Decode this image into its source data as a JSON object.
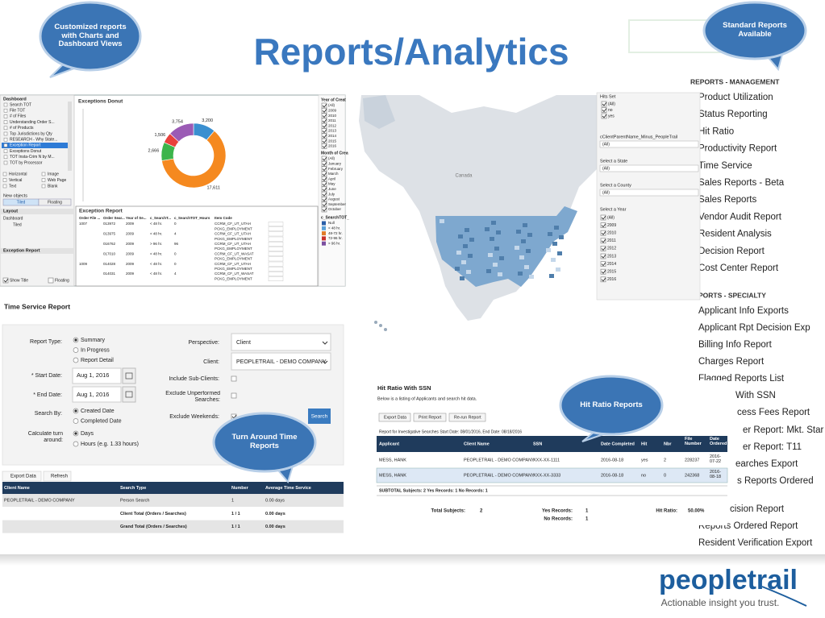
{
  "title": "Reports/Analytics",
  "callouts": [
    "Customized reports with Charts and Dashboard Views",
    "Standard Reports Available",
    "Turn Around Time Reports",
    "Hit Ratio Reports"
  ],
  "dashboard": {
    "sidebar_title": "Dashboard",
    "sidebar_items": [
      "Search TOT",
      "File TOT",
      "# of Files",
      "Understanding Order S...",
      "# of Products",
      "Top Jurisdictions by Qty",
      "RESEARCH - Why State...",
      "Exception Report",
      "Exceptions Donut",
      "TOT Insta-Crim N by M...",
      "TOT by Processor"
    ],
    "objects": [
      "Horizontal",
      "Image",
      "Vertical",
      "Web Page",
      "Text",
      "Blank"
    ],
    "new_objects": "New objects",
    "tiled": "Tiled",
    "floating": "Floating",
    "layout": "Layout",
    "layout_items": [
      "Dashboard",
      "Tiled"
    ],
    "selected": "Exception Report",
    "show_title": "Show Title",
    "donut": {
      "title": "Exceptions Donut",
      "values": [
        3200,
        17611,
        2666,
        1506,
        3754
      ],
      "value_labels": [
        "3,200",
        "17,611",
        "2,666",
        "1,506",
        "3,754"
      ],
      "colors": [
        "#3a8fd0",
        "#f5891f",
        "#3cb44b",
        "#e8413c",
        "#9b5bb5"
      ]
    },
    "year_filter": {
      "title": "Year of Creat",
      "items": [
        "(All)",
        "2009",
        "2010",
        "2011",
        "2012",
        "2013",
        "2014",
        "2015",
        "2016"
      ]
    },
    "month_filter": {
      "title": "Month of Crea",
      "items": [
        "(All)",
        "January",
        "February",
        "March",
        "April",
        "May",
        "June",
        "July",
        "August",
        "September",
        "October"
      ]
    },
    "tot_filter": {
      "title": "c_SearchTOT_",
      "items": [
        "Null",
        "< 48 hr.",
        "48-72 hr.",
        "72-96 hr.",
        "> 96 hr."
      ],
      "colors": [
        "#2a5fa8",
        "#5aa0d8",
        "#e07b2a",
        "#c9302c",
        "#7b4fa0"
      ]
    },
    "exception_table": {
      "title": "Exception Report",
      "columns": [
        "Order File ...",
        "Order Sear...",
        "Year of Se...",
        "c_SearchT...",
        "c_SearchTOT_Hours",
        "Item Code"
      ],
      "rows": [
        [
          "1007",
          "013972",
          "2009",
          "< 48 hr.",
          "0",
          "CCRM_CF_UT_UTAH"
        ],
        [
          null,
          null,
          null,
          null,
          null,
          "PCKG_EMPLOYMENT"
        ],
        [
          null,
          "013975",
          "2009",
          "< 48 hr.",
          "4",
          "CCRM_CF_UT_UTAH"
        ],
        [
          null,
          null,
          null,
          null,
          null,
          "PCKG_EMPLOYMENT"
        ],
        [
          null,
          "016762",
          "2009",
          "> 96 hr.",
          "96",
          "CCRM_CF_UT_UTAH"
        ],
        [
          null,
          null,
          null,
          null,
          null,
          "PCKG_EMPLOYMENT"
        ],
        [
          null,
          "017010",
          "2009",
          "< 48 hr.",
          "0",
          "CCRM_CF_UT_WASAT"
        ],
        [
          null,
          null,
          null,
          null,
          null,
          "PCKG_EMPLOYMENT"
        ],
        [
          "1009",
          "014028",
          "2009",
          "< 48 hr.",
          "0",
          "CCRM_CF_UT_UTAH"
        ],
        [
          null,
          null,
          null,
          null,
          null,
          "PCKG_EMPLOYMENT"
        ],
        [
          null,
          "014031",
          "2009",
          "< 48 hr.",
          "4",
          "CCRM_CF_UT_WASAT"
        ],
        [
          null,
          null,
          null,
          null,
          null,
          "PCKG_EMPLOYMENT"
        ]
      ]
    }
  },
  "map": {
    "label": "Canada",
    "hits_set": {
      "title": "Hits Set",
      "items": [
        "(All)",
        "no",
        "yes"
      ]
    },
    "client": {
      "title": "cClientParentName_Minus_PeopleTrail",
      "value": "(All)"
    },
    "state": {
      "title": "Select a State",
      "value": "(All)"
    },
    "county": {
      "title": "Select a County",
      "value": "(All)"
    },
    "year": {
      "title": "Select a Year",
      "items": [
        "(All)",
        "2009",
        "2010",
        "2011",
        "2012",
        "2013",
        "2014",
        "2015",
        "2016"
      ]
    }
  },
  "standard_reports": {
    "management_header": "REPORTS - MANAGEMENT",
    "management": [
      "Product Utilization",
      "Status Reporting",
      "Hit Ratio",
      "Productivity Report",
      "Time Service",
      "Sales Reports - Beta",
      "Sales Reports",
      "Vendor Audit Report",
      "Resident Analysis",
      "Decision Report",
      "Cost Center Report"
    ],
    "specialty_header": "PORTS - SPECIALTY",
    "specialty": [
      "Applicant Info Exports",
      "Applicant Rpt Decision Exp",
      "Billing Info Report",
      "Charges Report",
      "Flagged Reports List",
      "With SSN",
      "cess Fees Report",
      "er Report: Mkt. Star",
      "er Report: T11",
      "earches Export",
      "s Reports Ordered",
      "cision Report",
      "Reports Ordered Report",
      "Resident Verification Export"
    ]
  },
  "time_service": {
    "title": "Time Service Report",
    "form": {
      "report_type_label": "Report Type:",
      "report_type_options": [
        "Summary",
        "In Progress",
        "Report Detail"
      ],
      "start_date_label": "* Start Date:",
      "start_date": "Aug 1, 2016",
      "end_date_label": "* End Date:",
      "end_date": "Aug 1, 2016",
      "search_by_label": "Search By:",
      "search_by_options": [
        "Created Date",
        "Completed Date"
      ],
      "calc_label": "Calculate turn around:",
      "calc_options": [
        "Days",
        "Hours (e.g. 1.33 hours)"
      ],
      "perspective_label": "Perspective:",
      "perspective": "Client",
      "client_label": "Client:",
      "client": "PEOPLETRAIL - DEMO COMPANY",
      "include_sub_label": "Include Sub-Clients:",
      "exclude_unperformed_label": "Exclude Unperformed Searches:",
      "exclude_weekends_label": "Exclude Weekends:",
      "search_button": "Search"
    },
    "export": "Export Data",
    "refresh": "Refresh",
    "table": {
      "columns": [
        "Client Name",
        "Search Type",
        "Number",
        "Average Time Service"
      ],
      "rows": [
        [
          "PEOPLETRAIL - DEMO COMPANY",
          "Person Search",
          "1",
          "0.00 days"
        ],
        [
          null,
          "Client Total (Orders / Searches)",
          "1 / 1",
          "0.00 days"
        ],
        [
          null,
          "Grand Total (Orders / Searches)",
          "1 / 1",
          "0.00 days"
        ]
      ]
    }
  },
  "hit_ratio": {
    "title": "Hit Ratio With SSN",
    "subtitle": "Below is a listing of Applicants and search hit data.",
    "buttons": [
      "Export Data",
      "Print Report",
      "Re-run Report"
    ],
    "report_for": "Report for Investigative Searches   Start Date: 08/01/2016, End Date: 08/18/2016",
    "columns": [
      "Applicant",
      "Client Name",
      "SSN",
      "Date Completed",
      "Hit",
      "Nbr",
      "File Number",
      "Date Ordered"
    ],
    "rows": [
      [
        "MESS, HANK",
        "PEOPLETRAIL - DEMO COMPANY",
        "XXX-XX-1111",
        "2016-08-18",
        "yes",
        "2",
        "228237",
        "2016-07-22"
      ],
      [
        "MESS, HANK",
        "PEOPLETRAIL - DEMO COMPANY",
        "XXX-XX-3333",
        "2016-08-18",
        "no",
        "0",
        "242368",
        "2016-08-18"
      ]
    ],
    "subtotal": "SUBTOTAL     Subjects: 2    Yes Records: 1    No Records: 1",
    "totals": {
      "subjects_label": "Total Subjects:",
      "subjects": "2",
      "yes_label": "Yes Records:",
      "yes": "1",
      "no_label": "No Records:",
      "no": "1",
      "ratio_label": "Hit Ratio:",
      "ratio": "50.00%"
    }
  },
  "logo": {
    "name": "peopletrail",
    "tagline": "Actionable insight you trust."
  }
}
